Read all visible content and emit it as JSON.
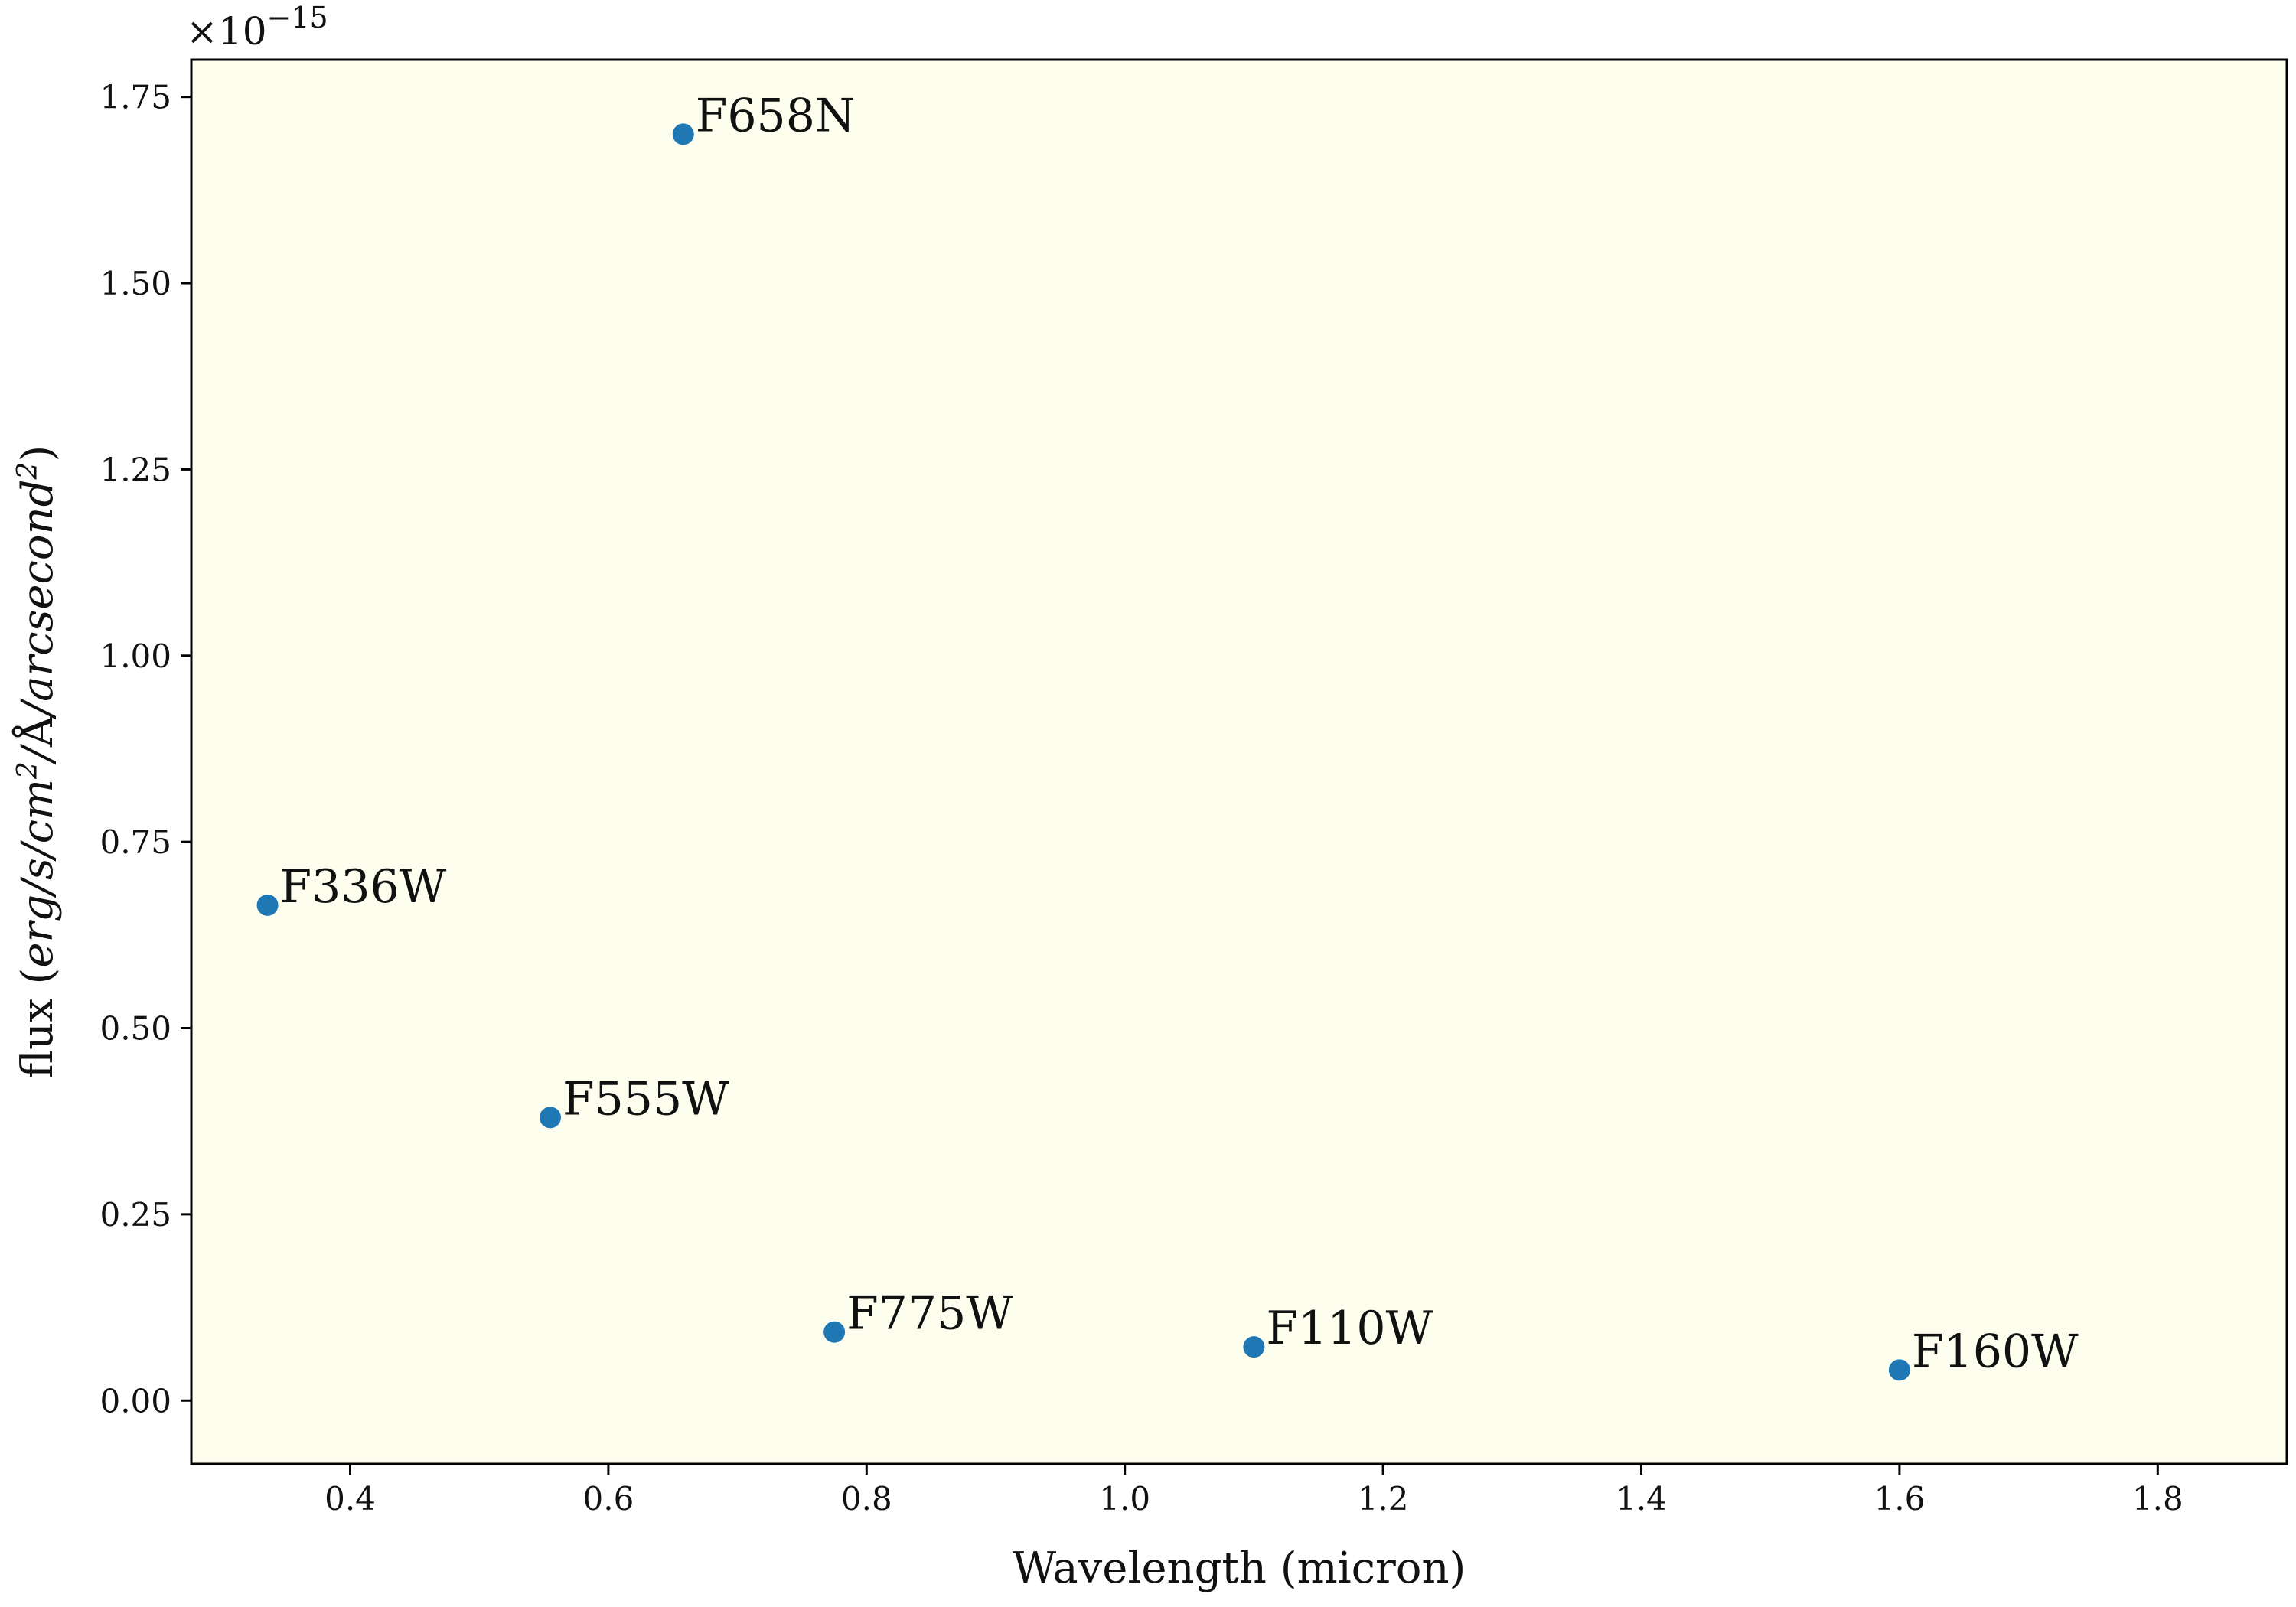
{
  "chart_data": {
    "type": "scatter",
    "title": "",
    "xlabel": "Wavelength (micron)",
    "ylabel": "flux (erg/s/cm²/Å/arcsecond²)",
    "ylabel_parts": {
      "pre": "flux (",
      "a": "erg/s/cm",
      "b": "/",
      "c": "Å",
      "d": "/arcsecond",
      "sup": "2",
      "post": ")"
    },
    "y_offset_label": {
      "base": "×10",
      "exp": "−15"
    },
    "xlim": [
      0.277,
      1.9
    ],
    "ylim": [
      -0.085,
      1.8
    ],
    "y_scale_factor": 1e-15,
    "xticks": [
      0.4,
      0.6,
      0.8,
      1.0,
      1.2,
      1.4,
      1.6,
      1.8
    ],
    "xtick_labels": [
      "0.4",
      "0.6",
      "0.8",
      "1.0",
      "1.2",
      "1.4",
      "1.6",
      "1.8"
    ],
    "yticks": [
      0.0,
      0.25,
      0.5,
      0.75,
      1.0,
      1.25,
      1.5,
      1.75
    ],
    "ytick_labels": [
      "0.00",
      "0.25",
      "0.50",
      "0.75",
      "1.00",
      "1.25",
      "1.50",
      "1.75"
    ],
    "grid": false,
    "background_color": "#fefeef",
    "marker_color": "#1f77b4",
    "points": [
      {
        "label": "F336W",
        "x": 0.336,
        "y": 0.665
      },
      {
        "label": "F555W",
        "x": 0.555,
        "y": 0.38
      },
      {
        "label": "F658N",
        "x": 0.658,
        "y": 1.7
      },
      {
        "label": "F775W",
        "x": 0.775,
        "y": 0.092
      },
      {
        "label": "F110W",
        "x": 1.1,
        "y": 0.072
      },
      {
        "label": "F160W",
        "x": 1.6,
        "y": 0.041
      }
    ]
  }
}
